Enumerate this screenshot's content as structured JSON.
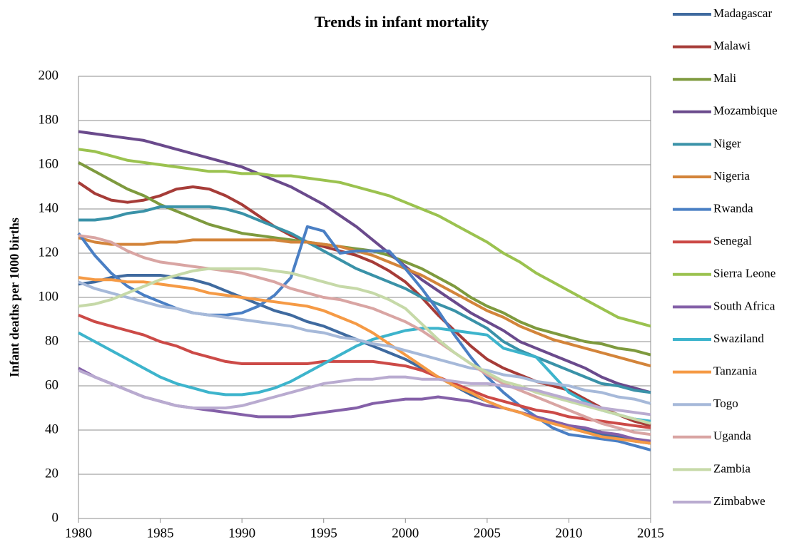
{
  "chart_data": {
    "type": "line",
    "title": "Trends in infant mortality",
    "y_label": "Infant deaths per 1000 births",
    "x": [
      1980,
      1981,
      1982,
      1983,
      1984,
      1985,
      1986,
      1987,
      1988,
      1989,
      1990,
      1991,
      1992,
      1993,
      1994,
      1995,
      1996,
      1997,
      1998,
      1999,
      2000,
      2001,
      2002,
      2003,
      2004,
      2005,
      2006,
      2007,
      2008,
      2009,
      2010,
      2011,
      2012,
      2013,
      2014,
      2015
    ],
    "xlim": [
      1980,
      2015
    ],
    "xticks": [
      1980,
      1985,
      1990,
      1995,
      2000,
      2005,
      2010,
      2015
    ],
    "ylim": [
      0,
      200
    ],
    "yticks": [
      0,
      20,
      40,
      60,
      80,
      100,
      120,
      140,
      160,
      180,
      200
    ],
    "grid": true,
    "legend": "right",
    "series": [
      {
        "name": "Madagascar",
        "color": "#3f6a9f",
        "values": [
          106,
          107,
          109,
          110,
          110,
          110,
          109,
          108,
          106,
          103,
          100,
          97,
          94,
          92,
          89,
          87,
          84,
          81,
          78,
          75,
          72,
          68,
          64,
          60,
          56,
          53,
          50,
          48,
          46,
          44,
          42,
          40,
          38,
          37,
          35,
          34
        ]
      },
      {
        "name": "Malawi",
        "color": "#a63c38",
        "values": [
          152,
          147,
          144,
          143,
          144,
          146,
          149,
          150,
          149,
          146,
          142,
          137,
          132,
          128,
          125,
          123,
          121,
          119,
          116,
          112,
          107,
          100,
          92,
          85,
          78,
          72,
          68,
          65,
          62,
          60,
          58,
          54,
          50,
          47,
          44,
          42
        ]
      },
      {
        "name": "Mali",
        "color": "#7e9a3e",
        "values": [
          161,
          157,
          153,
          149,
          146,
          142,
          139,
          136,
          133,
          131,
          129,
          128,
          127,
          126,
          125,
          124,
          123,
          122,
          121,
          119,
          116,
          113,
          109,
          105,
          100,
          96,
          93,
          89,
          86,
          84,
          82,
          80,
          79,
          77,
          76,
          74
        ]
      },
      {
        "name": "Mozambique",
        "color": "#6a4a8c",
        "values": [
          175,
          174,
          173,
          172,
          171,
          169,
          167,
          165,
          163,
          161,
          159,
          156,
          153,
          150,
          146,
          142,
          137,
          132,
          126,
          120,
          114,
          108,
          103,
          98,
          93,
          89,
          85,
          80,
          77,
          74,
          71,
          68,
          64,
          61,
          59,
          57
        ]
      },
      {
        "name": "Niger",
        "color": "#3a92a8",
        "values": [
          135,
          135,
          136,
          138,
          139,
          141,
          141,
          141,
          141,
          140,
          138,
          135,
          132,
          129,
          125,
          121,
          117,
          113,
          110,
          107,
          104,
          100,
          97,
          94,
          90,
          86,
          80,
          76,
          73,
          70,
          67,
          64,
          61,
          60,
          58,
          57
        ]
      },
      {
        "name": "Nigeria",
        "color": "#d3843a",
        "values": [
          127,
          125,
          124,
          124,
          124,
          125,
          125,
          126,
          126,
          126,
          126,
          126,
          126,
          125,
          125,
          124,
          123,
          121,
          119,
          116,
          113,
          110,
          106,
          102,
          98,
          94,
          91,
          87,
          84,
          81,
          79,
          77,
          75,
          73,
          71,
          69
        ]
      },
      {
        "name": "Rwanda",
        "color": "#4a7fc4",
        "values": [
          129,
          119,
          111,
          105,
          101,
          98,
          95,
          93,
          92,
          92,
          93,
          96,
          101,
          109,
          132,
          130,
          120,
          121,
          121,
          121,
          113,
          104,
          94,
          83,
          73,
          64,
          57,
          51,
          46,
          41,
          38,
          37,
          36,
          35,
          33,
          31
        ]
      },
      {
        "name": "Senegal",
        "color": "#cc4a47",
        "values": [
          92,
          89,
          87,
          85,
          83,
          80,
          78,
          75,
          73,
          71,
          70,
          70,
          70,
          70,
          70,
          71,
          71,
          71,
          71,
          70,
          69,
          67,
          64,
          61,
          58,
          55,
          53,
          51,
          49,
          48,
          46,
          45,
          44,
          43,
          42,
          41
        ]
      },
      {
        "name": "Sierra Leone",
        "color": "#9bc24f",
        "values": [
          167,
          166,
          164,
          162,
          161,
          160,
          159,
          158,
          157,
          157,
          156,
          156,
          155,
          155,
          154,
          153,
          152,
          150,
          148,
          146,
          143,
          140,
          137,
          133,
          129,
          125,
          120,
          116,
          111,
          107,
          103,
          99,
          95,
          91,
          89,
          87
        ]
      },
      {
        "name": "South Africa",
        "color": "#8460a8",
        "values": [
          68,
          64,
          61,
          58,
          55,
          53,
          51,
          50,
          49,
          48,
          47,
          46,
          46,
          46,
          47,
          48,
          49,
          50,
          52,
          53,
          54,
          54,
          55,
          54,
          53,
          51,
          50,
          48,
          46,
          44,
          42,
          41,
          39,
          38,
          36,
          35
        ]
      },
      {
        "name": "Swaziland",
        "color": "#3db4cc",
        "values": [
          84,
          80,
          76,
          72,
          68,
          64,
          61,
          59,
          57,
          56,
          56,
          57,
          59,
          62,
          66,
          70,
          74,
          78,
          81,
          83,
          85,
          86,
          86,
          85,
          84,
          83,
          77,
          75,
          73,
          65,
          57,
          53,
          49,
          47,
          45,
          44
        ]
      },
      {
        "name": "Tanzania",
        "color": "#f59a45",
        "values": [
          109,
          108,
          108,
          107,
          107,
          106,
          105,
          104,
          102,
          101,
          100,
          99,
          98,
          97,
          96,
          94,
          91,
          88,
          84,
          79,
          74,
          69,
          64,
          60,
          57,
          53,
          50,
          48,
          45,
          43,
          41,
          39,
          37,
          36,
          35,
          34
        ]
      },
      {
        "name": "Togo",
        "color": "#a6b9d9",
        "values": [
          107,
          104,
          102,
          100,
          98,
          96,
          95,
          93,
          92,
          91,
          90,
          89,
          88,
          87,
          85,
          84,
          82,
          81,
          79,
          78,
          76,
          74,
          72,
          70,
          68,
          67,
          65,
          64,
          62,
          61,
          60,
          58,
          57,
          55,
          54,
          52
        ]
      },
      {
        "name": "Uganda",
        "color": "#d9a5a3",
        "values": [
          128,
          127,
          125,
          121,
          118,
          116,
          115,
          114,
          113,
          112,
          111,
          109,
          107,
          104,
          102,
          100,
          99,
          97,
          95,
          92,
          89,
          85,
          80,
          75,
          70,
          65,
          61,
          58,
          55,
          52,
          49,
          46,
          43,
          41,
          39,
          38
        ]
      },
      {
        "name": "Zambia",
        "color": "#c6d9a8",
        "values": [
          96,
          97,
          99,
          102,
          105,
          108,
          110,
          112,
          113,
          113,
          113,
          113,
          112,
          111,
          109,
          107,
          105,
          104,
          102,
          99,
          95,
          88,
          81,
          75,
          70,
          66,
          62,
          60,
          57,
          55,
          53,
          51,
          49,
          47,
          45,
          43
        ]
      },
      {
        "name": "Zimbabwe",
        "color": "#b9abd0",
        "values": [
          67,
          64,
          61,
          58,
          55,
          53,
          51,
          50,
          50,
          50,
          51,
          53,
          55,
          57,
          59,
          61,
          62,
          63,
          63,
          64,
          64,
          63,
          63,
          62,
          61,
          61,
          60,
          59,
          58,
          56,
          54,
          52,
          50,
          49,
          48,
          47
        ]
      }
    ]
  }
}
